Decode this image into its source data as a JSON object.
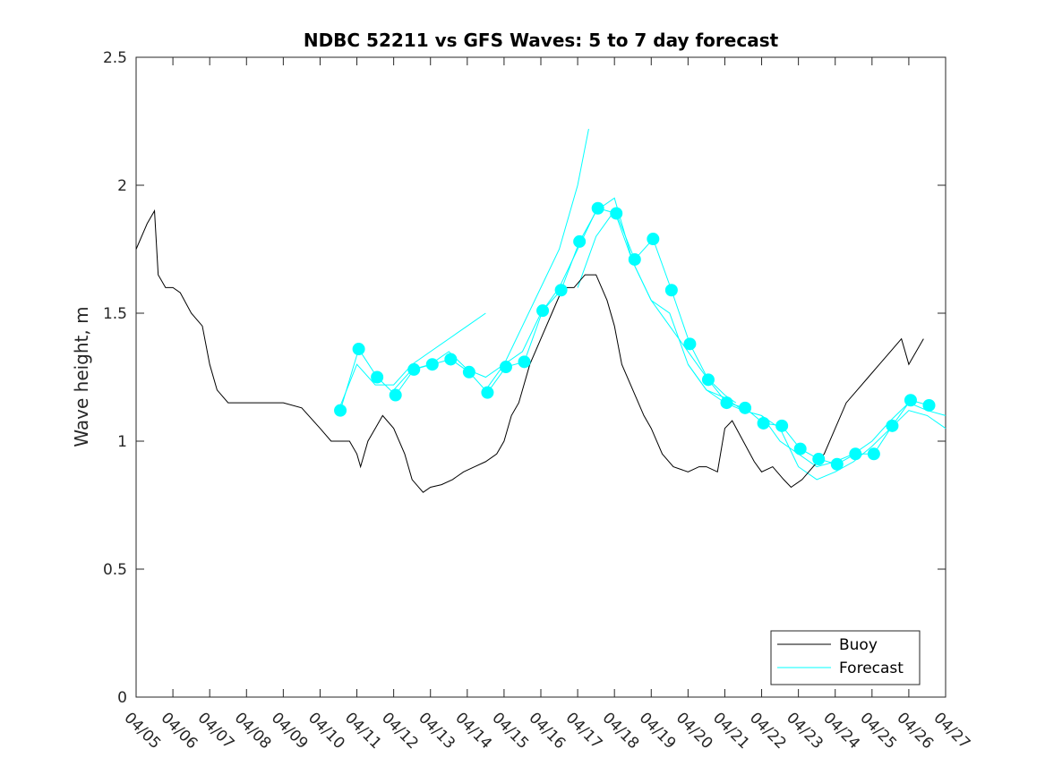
{
  "chart_data": {
    "type": "line",
    "title": "NDBC 52211 vs GFS Waves: 5 to 7 day forecast",
    "xlabel": "",
    "ylabel": "Wave height, m",
    "xlim": [
      0,
      22
    ],
    "ylim": [
      0,
      2.5
    ],
    "x_tick_labels": [
      "04/05",
      "04/06",
      "04/07",
      "04/08",
      "04/09",
      "04/10",
      "04/11",
      "04/12",
      "04/13",
      "04/14",
      "04/15",
      "04/16",
      "04/17",
      "04/18",
      "04/19",
      "04/20",
      "04/21",
      "04/22",
      "04/23",
      "04/24",
      "04/25",
      "04/26",
      "04/27"
    ],
    "y_ticks": [
      0,
      0.5,
      1,
      1.5,
      2,
      2.5
    ],
    "y_tick_labels": [
      "0",
      "0.5",
      "1",
      "1.5",
      "2",
      "2.5"
    ],
    "grid": false,
    "legend_position": "bottom-right",
    "colors": {
      "buoy": "#000000",
      "forecast": "#00ffff"
    },
    "series": [
      {
        "name": "Buoy",
        "x": [
          0,
          0.3,
          0.5,
          0.6,
          0.8,
          1,
          1.2,
          1.5,
          1.8,
          2,
          2.2,
          2.5,
          2.7,
          3,
          3.5,
          4,
          4.5,
          5,
          5.3,
          5.6,
          5.8,
          6,
          6.1,
          6.3,
          6.5,
          6.7,
          7,
          7.3,
          7.5,
          7.8,
          8,
          8.3,
          8.6,
          8.9,
          9.2,
          9.5,
          9.8,
          10,
          10.2,
          10.4,
          10.7,
          11,
          11.3,
          11.6,
          11.9,
          12.2,
          12.5,
          12.8,
          13,
          13.2,
          13.5,
          13.8,
          14,
          14.3,
          14.6,
          15,
          15.3,
          15.5,
          15.8,
          16,
          16.2,
          16.5,
          16.8,
          17,
          17.3,
          17.6,
          17.8,
          18.1,
          18.4,
          18.7,
          19,
          19.3,
          19.6,
          19.9,
          20.2,
          20.5,
          20.8,
          21,
          21.2,
          21.4
        ],
        "y": [
          1.75,
          1.85,
          1.9,
          1.65,
          1.6,
          1.6,
          1.58,
          1.5,
          1.45,
          1.3,
          1.2,
          1.15,
          1.15,
          1.15,
          1.15,
          1.15,
          1.13,
          1.05,
          1.0,
          1.0,
          1.0,
          0.95,
          0.9,
          1.0,
          1.05,
          1.1,
          1.05,
          0.95,
          0.85,
          0.8,
          0.82,
          0.83,
          0.85,
          0.88,
          0.9,
          0.92,
          0.95,
          1.0,
          1.1,
          1.15,
          1.3,
          1.4,
          1.5,
          1.6,
          1.6,
          1.65,
          1.65,
          1.55,
          1.45,
          1.3,
          1.2,
          1.1,
          1.05,
          0.95,
          0.9,
          0.88,
          0.9,
          0.9,
          0.88,
          1.05,
          1.08,
          1.0,
          0.92,
          0.88,
          0.9,
          0.85,
          0.82,
          0.85,
          0.9,
          0.95,
          1.05,
          1.15,
          1.2,
          1.25,
          1.3,
          1.35,
          1.4,
          1.3,
          1.35,
          1.4
        ]
      },
      {
        "name": "Forecast",
        "x": [
          5.55,
          6.05,
          6.55,
          7.05,
          7.55,
          8.05,
          8.55,
          9.05,
          9.55,
          10.05,
          10.55,
          11.05,
          11.55,
          12.05,
          12.55,
          13.05,
          13.55,
          14.05,
          14.55,
          15.05,
          15.55,
          16.05,
          16.55,
          17.05,
          17.55,
          18.05,
          18.55,
          19.05,
          19.55,
          20.05,
          20.55,
          21.05,
          21.55
        ],
        "y": [
          1.12,
          1.36,
          1.25,
          1.18,
          1.28,
          1.3,
          1.32,
          1.27,
          1.19,
          1.29,
          1.31,
          1.51,
          1.59,
          1.78,
          1.91,
          1.89,
          1.71,
          1.79,
          1.59,
          1.38,
          1.24,
          1.15,
          1.13,
          1.07,
          1.06,
          0.97,
          0.93,
          0.91,
          0.95,
          0.95,
          1.06,
          1.16,
          1.14
        ]
      }
    ],
    "forecast_runs": [
      {
        "x": [
          5.5,
          6,
          6.5,
          7,
          7.5,
          8,
          8.5,
          9,
          9.5
        ],
        "y": [
          1.12,
          1.3,
          1.22,
          1.22,
          1.3,
          1.35,
          1.4,
          1.45,
          1.5
        ]
      },
      {
        "x": [
          7,
          7.5,
          8,
          8.5,
          9,
          9.5,
          10,
          10.5,
          11,
          11.5,
          12,
          12.3
        ],
        "y": [
          1.2,
          1.28,
          1.3,
          1.35,
          1.28,
          1.25,
          1.3,
          1.45,
          1.6,
          1.75,
          2.0,
          2.22
        ]
      },
      {
        "x": [
          9.5,
          10,
          10.5,
          11,
          11.5,
          12,
          12.5,
          13,
          13.5,
          14,
          14.5,
          15,
          15.5,
          16,
          16.3
        ],
        "y": [
          1.2,
          1.3,
          1.35,
          1.5,
          1.6,
          1.75,
          1.9,
          1.95,
          1.7,
          1.55,
          1.45,
          1.35,
          1.25,
          1.18,
          1.15
        ]
      },
      {
        "x": [
          12,
          12.5,
          13,
          13.5,
          14,
          14.5,
          15,
          15.5,
          16,
          16.5,
          17,
          17.5,
          18,
          18.5,
          19,
          19.5,
          20,
          20.5,
          21,
          21.5,
          22
        ],
        "y": [
          1.6,
          1.8,
          1.9,
          1.7,
          1.55,
          1.5,
          1.3,
          1.2,
          1.15,
          1.12,
          1.1,
          1.05,
          0.9,
          0.85,
          0.88,
          0.92,
          0.98,
          1.05,
          1.12,
          1.1,
          1.05
        ]
      },
      {
        "x": [
          15,
          15.5,
          16,
          16.5,
          17,
          17.5,
          18,
          18.5,
          19,
          19.5,
          20,
          20.5,
          21,
          21.5,
          22
        ],
        "y": [
          1.3,
          1.2,
          1.17,
          1.12,
          1.1,
          1.0,
          0.95,
          0.9,
          0.92,
          0.95,
          1.0,
          1.08,
          1.15,
          1.12,
          1.1
        ]
      }
    ]
  }
}
